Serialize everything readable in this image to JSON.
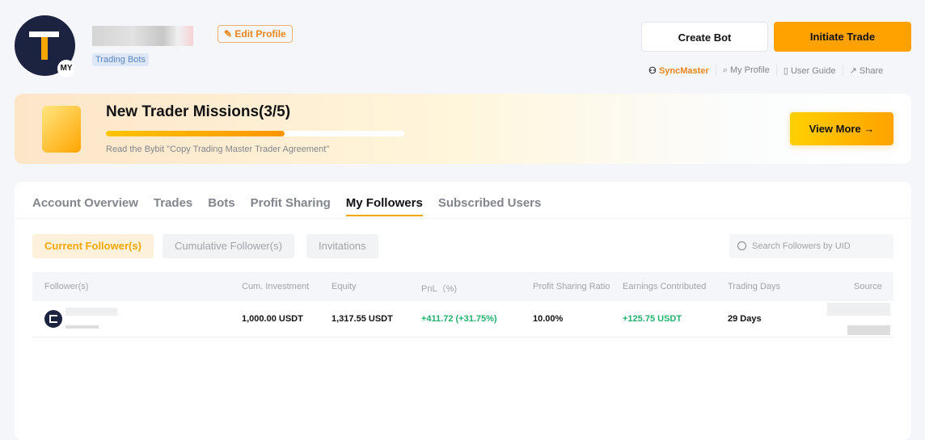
{
  "profile": {
    "badge": "MY",
    "tag": "Trading Bots",
    "edit_label": "Edit Profile"
  },
  "header": {
    "create_bot": "Create Bot",
    "initiate_trade": "Initiate Trade",
    "links": [
      "SyncMaster",
      "My Profile",
      "User Guide",
      "Share"
    ]
  },
  "banner": {
    "title": "New Trader Missions(3/5)",
    "progress_percent": 60,
    "subtitle": "Read the Bybit \"Copy Trading Master Trader Agreement\"",
    "button": "View More"
  },
  "tabs": [
    "Account Overview",
    "Trades",
    "Bots",
    "Profit Sharing",
    "My Followers",
    "Subscribed Users"
  ],
  "active_tab": "My Followers",
  "subtabs": [
    "Current Follower(s)",
    "Cumulative Follower(s)",
    "Invitations"
  ],
  "search": {
    "placeholder": "Search Followers by UID"
  },
  "table": {
    "headers": [
      "Follower(s)",
      "Cum. Investment",
      "Equity",
      "PnL（%)",
      "Profit Sharing Ratio",
      "Earnings Contributed",
      "Trading Days",
      "Source"
    ],
    "rows": [
      {
        "investment": "1,000.00 USDT",
        "equity": "1,317.55 USDT",
        "pnl": "+411.72 (+31.75%)",
        "ratio": "10.00%",
        "earnings": "+125.75 USDT",
        "days": "29 Days"
      }
    ]
  },
  "colors": {
    "accent": "#f7a600",
    "positive": "#20b26c"
  }
}
